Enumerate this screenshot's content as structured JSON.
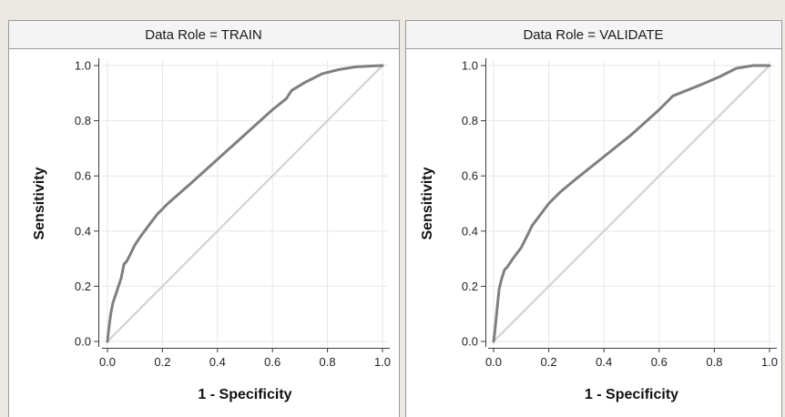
{
  "colors": {
    "background": "#ebe9e2",
    "panel": "#ffffff",
    "header": "#f4f4f4",
    "grid": "#e6e6e6",
    "roc_curve": "#7f7f7f",
    "diagonal": "#cfcfcf",
    "axis": "#3a3a3a"
  },
  "chart_data": [
    {
      "type": "line",
      "title": "Data Role = TRAIN",
      "xlabel": "1 - Specificity",
      "ylabel": "Sensitivity",
      "xlim": [
        0,
        1
      ],
      "ylim": [
        0,
        1
      ],
      "x_ticks": [
        "0.0",
        "0.2",
        "0.4",
        "0.6",
        "0.8",
        "1.0"
      ],
      "y_ticks": [
        "0.0",
        "0.2",
        "0.4",
        "0.6",
        "0.8",
        "1.0"
      ],
      "grid": true,
      "series": [
        {
          "x": [
            0,
            0.003,
            0.008,
            0.012,
            0.02,
            0.03,
            0.04,
            0.05,
            0.06,
            0.07,
            0.08,
            0.1,
            0.12,
            0.15,
            0.18,
            0.22,
            0.3,
            0.4,
            0.5,
            0.6,
            0.65,
            0.67,
            0.72,
            0.78,
            0.84,
            0.9,
            0.95,
            1.0
          ],
          "y": [
            0,
            0.03,
            0.07,
            0.1,
            0.14,
            0.17,
            0.2,
            0.23,
            0.28,
            0.29,
            0.31,
            0.35,
            0.38,
            0.42,
            0.46,
            0.5,
            0.57,
            0.66,
            0.75,
            0.84,
            0.88,
            0.91,
            0.94,
            0.97,
            0.985,
            0.995,
            0.998,
            1.0
          ]
        },
        {
          "x": [
            0,
            1
          ],
          "y": [
            0,
            1
          ]
        }
      ]
    },
    {
      "type": "line",
      "title": "Data Role = VALIDATE",
      "xlabel": "1 - Specificity",
      "ylabel": "Sensitivity",
      "xlim": [
        0,
        1
      ],
      "ylim": [
        0,
        1
      ],
      "x_ticks": [
        "0.0",
        "0.2",
        "0.4",
        "0.6",
        "0.8",
        "1.0"
      ],
      "y_ticks": [
        "0.0",
        "0.2",
        "0.4",
        "0.6",
        "0.8",
        "1.0"
      ],
      "grid": true,
      "series": [
        {
          "x": [
            0,
            0.005,
            0.01,
            0.015,
            0.02,
            0.03,
            0.04,
            0.05,
            0.07,
            0.1,
            0.12,
            0.14,
            0.17,
            0.2,
            0.24,
            0.3,
            0.4,
            0.5,
            0.6,
            0.65,
            0.75,
            0.82,
            0.88,
            0.94,
            1.0
          ],
          "y": [
            0,
            0.04,
            0.09,
            0.14,
            0.19,
            0.23,
            0.26,
            0.27,
            0.3,
            0.34,
            0.38,
            0.42,
            0.46,
            0.5,
            0.54,
            0.59,
            0.67,
            0.75,
            0.84,
            0.89,
            0.93,
            0.96,
            0.99,
            1.0,
            1.0
          ]
        },
        {
          "x": [
            0,
            1
          ],
          "y": [
            0,
            1
          ]
        }
      ]
    }
  ]
}
